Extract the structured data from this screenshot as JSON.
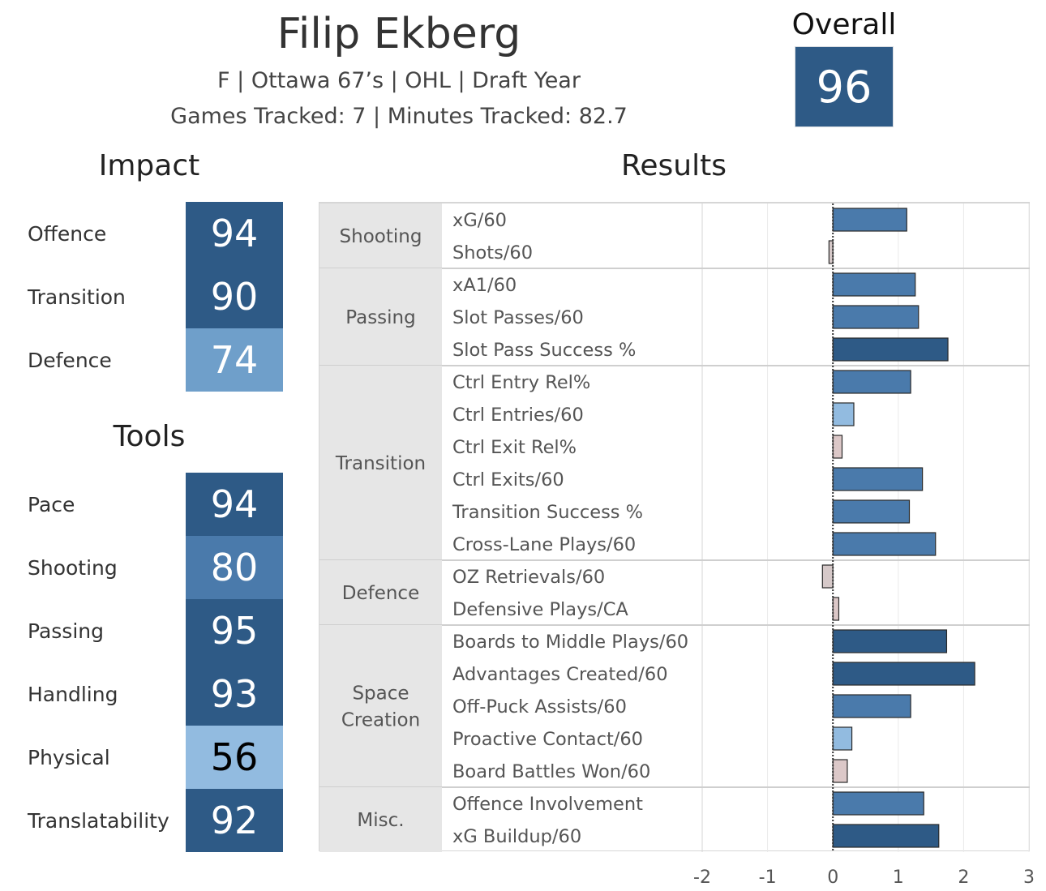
{
  "header": {
    "player_name": "Filip Ekberg",
    "info_line": "F | Ottawa 67’s | OHL | Draft Year",
    "tracking_line": "Games Tracked: 7 | Minutes Tracked: 82.7"
  },
  "overall": {
    "label": "Overall",
    "value": "96",
    "color": "#2e5a86"
  },
  "impact": {
    "title": "Impact",
    "items": [
      {
        "label": "Offence",
        "value": "94",
        "color": "#2e5a86",
        "text_color": "#ffffff"
      },
      {
        "label": "Transition",
        "value": "90",
        "color": "#2e5a86",
        "text_color": "#ffffff"
      },
      {
        "label": "Defence",
        "value": "74",
        "color": "#6f9fca",
        "text_color": "#ffffff"
      }
    ]
  },
  "tools": {
    "title": "Tools",
    "items": [
      {
        "label": "Pace",
        "value": "94",
        "color": "#2e5a86",
        "text_color": "#ffffff"
      },
      {
        "label": "Shooting",
        "value": "80",
        "color": "#4a7aab",
        "text_color": "#ffffff"
      },
      {
        "label": "Passing",
        "value": "95",
        "color": "#2e5a86",
        "text_color": "#ffffff"
      },
      {
        "label": "Handling",
        "value": "93",
        "color": "#2e5a86",
        "text_color": "#ffffff"
      },
      {
        "label": "Physical",
        "value": "56",
        "color": "#92bbe0",
        "text_color": "#000000"
      },
      {
        "label": "Translatability",
        "value": "92",
        "color": "#2e5a86",
        "text_color": "#ffffff"
      }
    ]
  },
  "chart_data": {
    "type": "bar",
    "orientation": "horizontal",
    "title": "Results",
    "xlim": [
      -2,
      3
    ],
    "x_ticks": [
      "-2",
      "-1",
      "0",
      "1",
      "2",
      "3"
    ],
    "x_tick_values": [
      -2,
      -1,
      0,
      1,
      2,
      3
    ],
    "grid": true,
    "groups": [
      {
        "name": "Shooting",
        "metrics": [
          {
            "label": "xG/60",
            "value": 1.13,
            "color": "#4a7aab"
          },
          {
            "label": "Shots/60",
            "value": -0.06,
            "color": "#d6c9c9"
          }
        ]
      },
      {
        "name": "Passing",
        "metrics": [
          {
            "label": "xA1/60",
            "value": 1.26,
            "color": "#4a7aab"
          },
          {
            "label": "Slot Passes/60",
            "value": 1.31,
            "color": "#4a7aab"
          },
          {
            "label": "Slot Pass Success %",
            "value": 1.76,
            "color": "#2e5a86"
          }
        ]
      },
      {
        "name": "Transition",
        "metrics": [
          {
            "label": "Ctrl Entry Rel%",
            "value": 1.19,
            "color": "#4a7aab"
          },
          {
            "label": "Ctrl Entries/60",
            "value": 0.32,
            "color": "#92bbe0"
          },
          {
            "label": "Ctrl Exit Rel%",
            "value": 0.14,
            "color": "#dcc8c8"
          },
          {
            "label": "Ctrl Exits/60",
            "value": 1.37,
            "color": "#4a7aab"
          },
          {
            "label": "Transition Success %",
            "value": 1.17,
            "color": "#4a7aab"
          },
          {
            "label": "Cross-Lane Plays/60",
            "value": 1.57,
            "color": "#4a7aab"
          }
        ]
      },
      {
        "name": "Defence",
        "metrics": [
          {
            "label": "OZ Retrievals/60",
            "value": -0.16,
            "color": "#d6c9c9"
          },
          {
            "label": "Defensive Plays/CA",
            "value": 0.09,
            "color": "#dcc8c8"
          }
        ]
      },
      {
        "name": "Space Creation",
        "metrics": [
          {
            "label": "Boards to Middle Plays/60",
            "value": 1.74,
            "color": "#2e5a86"
          },
          {
            "label": "Advantages Created/60",
            "value": 2.17,
            "color": "#2e5a86"
          },
          {
            "label": "Off-Puck Assists/60",
            "value": 1.19,
            "color": "#4a7aab"
          },
          {
            "label": "Proactive Contact/60",
            "value": 0.29,
            "color": "#92bbe0"
          },
          {
            "label": "Board Battles Won/60",
            "value": 0.22,
            "color": "#dcc8c8"
          }
        ]
      },
      {
        "name": "Misc.",
        "metrics": [
          {
            "label": "Offence Involvement",
            "value": 1.39,
            "color": "#4a7aab"
          },
          {
            "label": "xG Buildup/60",
            "value": 1.62,
            "color": "#2e5a86"
          }
        ]
      }
    ]
  }
}
